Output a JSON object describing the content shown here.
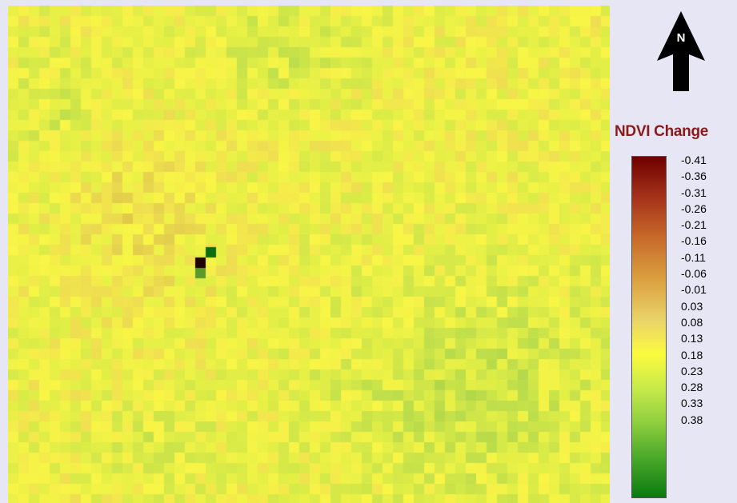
{
  "legend": {
    "title": "NDVI Change",
    "labels": [
      "-0.41",
      "-0.36",
      "-0.31",
      "-0.26",
      "-0.21",
      "-0.16",
      "-0.11",
      "-0.06",
      "-0.01",
      "0.03",
      "0.08",
      "0.13",
      "0.18",
      "0.23",
      "0.28",
      "0.33",
      "0.38"
    ],
    "colors": {
      "min": "#6e0000",
      "mid_negative": "#dba040",
      "near_zero": "#fbfb3e",
      "mid_positive": "#8fcf3f",
      "max": "#0a7a10"
    }
  },
  "north_arrow": {
    "label": "N",
    "icon": "north-arrow-icon"
  }
}
